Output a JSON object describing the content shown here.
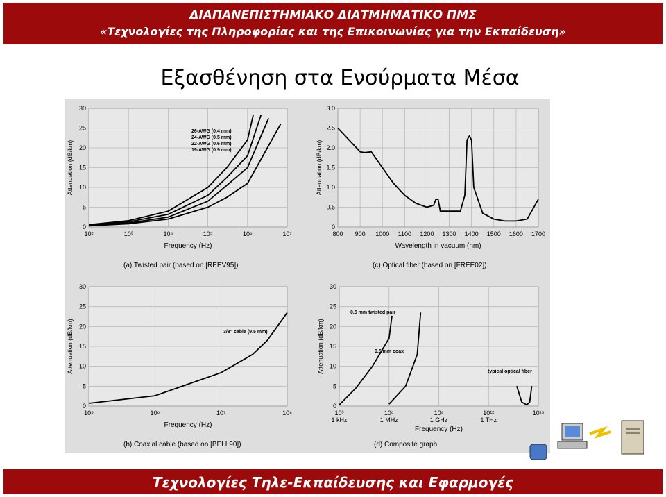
{
  "header": {
    "line1": "ΔΙΑΠΑΝΕΠΙΣΤΗΜΙΑΚΟ ΔΙΑΤΜΗΜΑΤΙΚΟ ΠΜΣ",
    "line2": "«Τεχνολογίες της Πληροφορίας και της Επικοινωνίας για την Εκπαίδευση»"
  },
  "title": "Εξασθένηση στα Ενσύρματα Μέσα",
  "footer": "Τεχνολογίες Τηλε-Εκπαίδευσης και Εφαρμογές",
  "chart_data": [
    {
      "type": "line",
      "caption": "(a) Twisted pair (based on [REEV95])",
      "xlabel": "Frequency (Hz)",
      "ylabel": "Attenuation (dB/km)",
      "xlog": true,
      "grid": true,
      "xlim": [
        100,
        10000000
      ],
      "ylim": [
        0,
        30
      ],
      "xticks": [
        {
          "value": 100,
          "label": "10²"
        },
        {
          "value": 1000,
          "label": "10³"
        },
        {
          "value": 10000,
          "label": "10⁴"
        },
        {
          "value": 100000,
          "label": "10⁵"
        },
        {
          "value": 1000000,
          "label": "10⁶"
        },
        {
          "value": 10000000,
          "label": "10⁷"
        }
      ],
      "yticks": [
        0,
        5,
        10,
        15,
        20,
        25,
        30
      ],
      "series": [
        {
          "name": "26-AWG (0.4 mm)",
          "color": "#000000",
          "x": [
            100,
            1000,
            10000,
            100000,
            300000,
            1000000,
            1400000
          ],
          "values": [
            0.6,
            1.6,
            4,
            10,
            15,
            22,
            28.4
          ]
        },
        {
          "name": "24-AWG (0.5 mm)",
          "color": "#000000",
          "x": [
            100,
            1000,
            10000,
            100000,
            300000,
            1000000,
            2200000
          ],
          "values": [
            0.5,
            1.3,
            3.2,
            8,
            12.5,
            18,
            28.4
          ]
        },
        {
          "name": "22-AWG (0.6 mm)",
          "color": "#000000",
          "x": [
            100,
            1000,
            10000,
            100000,
            300000,
            1000000,
            3400000
          ],
          "values": [
            0.4,
            1,
            2.5,
            6.5,
            10.5,
            15,
            27.5
          ]
        },
        {
          "name": "19-AWG (0.9 mm)",
          "color": "#000000",
          "x": [
            100,
            1000,
            10000,
            100000,
            300000,
            1000000,
            6900000
          ],
          "values": [
            0.3,
            0.8,
            2,
            5,
            7.5,
            11,
            26.1
          ]
        }
      ]
    },
    {
      "type": "line",
      "caption": "(c) Optical fiber (based on [FREE02])",
      "xlabel": "Wavelength in vacuum (nm)",
      "ylabel": "Attenuation (dB/km)",
      "xlog": false,
      "grid": true,
      "xlim": [
        800,
        1700
      ],
      "ylim": [
        0,
        3
      ],
      "xticks": [
        800,
        900,
        1000,
        1100,
        1200,
        1300,
        1400,
        1500,
        1600,
        1700
      ],
      "yticks": [
        0,
        0.5,
        {
          "value": 1,
          "label": "1.0"
        },
        1.5,
        {
          "value": 2,
          "label": "2.0"
        },
        2.5,
        {
          "value": 3,
          "label": "3.0"
        }
      ],
      "series": [
        {
          "color": "#000000",
          "x": [
            800,
            850,
            900,
            920,
            950,
            1000,
            1050,
            1100,
            1150,
            1200,
            1230,
            1240,
            1250,
            1260,
            1300,
            1350,
            1370,
            1380,
            1390,
            1400,
            1410,
            1450,
            1500,
            1550,
            1600,
            1650,
            1700
          ],
          "values": [
            2.5,
            2.2,
            1.9,
            1.88,
            1.9,
            1.5,
            1.1,
            0.8,
            0.6,
            0.5,
            0.55,
            0.7,
            0.7,
            0.4,
            0.4,
            0.4,
            0.8,
            2.2,
            2.3,
            2.2,
            1.0,
            0.35,
            0.2,
            0.15,
            0.15,
            0.2,
            0.7
          ]
        }
      ]
    },
    {
      "type": "line",
      "caption": "(b) Coaxial cable (based on [BELL90])",
      "xlabel": "Frequency (Hz)",
      "ylabel": "Attenuation (dB/km)",
      "xlog": true,
      "grid": true,
      "xlim": [
        100000,
        100000000
      ],
      "ylim": [
        0,
        30
      ],
      "xticks": [
        {
          "value": 100000,
          "label": "10⁵"
        },
        {
          "value": 1000000,
          "label": "10⁶"
        },
        {
          "value": 10000000,
          "label": "10⁷"
        },
        {
          "value": 100000000,
          "label": "10⁸"
        }
      ],
      "yticks": [
        0,
        5,
        10,
        15,
        20,
        25,
        30
      ],
      "series": [
        {
          "name": "3/8\" cable (9.5 mm)",
          "color": "#000000",
          "x": [
            100000,
            1000000,
            10000000,
            30000000,
            50000000,
            100000000
          ],
          "values": [
            0.7,
            2.6,
            8.4,
            13,
            16.5,
            23.5
          ]
        }
      ]
    },
    {
      "type": "line",
      "caption": "(d) Composite graph",
      "xlabel": "Frequency (Hz)",
      "ylabel": "Attenuation (dB/km)",
      "xlog": true,
      "grid": true,
      "xlim": [
        1000,
        1000000000000000
      ],
      "ylim": [
        0,
        30
      ],
      "xticks": [
        {
          "value": 1000,
          "label": "10³\n1 kHz"
        },
        {
          "value": 1000000,
          "label": "10⁶\n1 MHz"
        },
        {
          "value": 1000000000,
          "label": "10⁹\n1 GHz"
        },
        {
          "value": 1000000000000,
          "label": "10¹²\n1 THz"
        },
        {
          "value": 1000000000000000,
          "label": "10¹⁵"
        }
      ],
      "yticks": [
        0,
        5,
        10,
        15,
        20,
        25,
        30
      ],
      "series": [
        {
          "name": "0.5 mm twisted pair",
          "color": "#000000",
          "x": [
            1000,
            10000,
            100000,
            1000000,
            1500000
          ],
          "values": [
            0.3,
            4.5,
            10,
            17,
            22.7
          ]
        },
        {
          "name": "9.5 mm coax",
          "color": "#000000",
          "x": [
            1000000,
            10000000,
            50000000,
            80000000
          ],
          "values": [
            0.5,
            5,
            13,
            23.5
          ]
        },
        {
          "name": "typical optical fiber",
          "color": "#000000",
          "x": [
            50000000000000,
            100000000000000,
            200000000000000,
            300000000000000,
            400000000000000
          ],
          "values": [
            5,
            1,
            0.3,
            1,
            5
          ]
        }
      ]
    }
  ]
}
